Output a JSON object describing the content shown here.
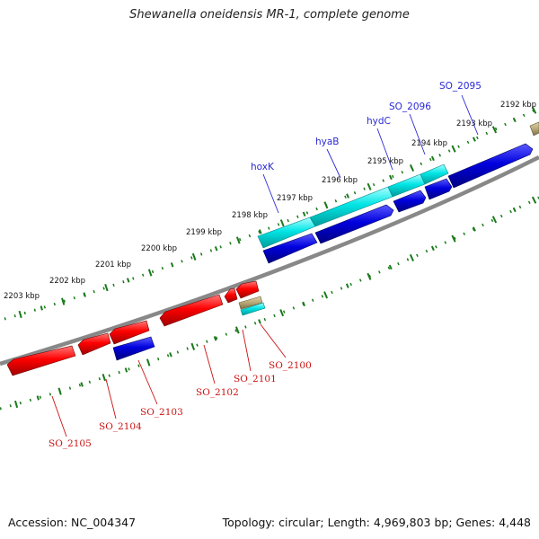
{
  "title": "Shewanella oneidensis MR-1, complete genome",
  "footer": {
    "accession": "Accession: NC_004347",
    "topology": "Topology: circular; Length: 4,969,803 bp; Genes: 4,448"
  },
  "scale_labels": [
    {
      "text": "2192 kbp",
      "kbp": 2192
    },
    {
      "text": "2193 kbp",
      "kbp": 2193
    },
    {
      "text": "2194 kbp",
      "kbp": 2194
    },
    {
      "text": "2195 kbp",
      "kbp": 2195
    },
    {
      "text": "2196 kbp",
      "kbp": 2196
    },
    {
      "text": "2197 kbp",
      "kbp": 2197
    },
    {
      "text": "2198 kbp",
      "kbp": 2198
    },
    {
      "text": "2199 kbp",
      "kbp": 2199
    },
    {
      "text": "2200 kbp",
      "kbp": 2200
    },
    {
      "text": "2201 kbp",
      "kbp": 2201
    },
    {
      "text": "2202 kbp",
      "kbp": 2202
    },
    {
      "text": "2203 kbp",
      "kbp": 2203
    }
  ],
  "gene_labels_top": [
    "SO_2095",
    "SO_2096",
    "hydC",
    "hyaB",
    "hoxK"
  ],
  "gene_labels_bottom": [
    "SO_2100",
    "SO_2101",
    "SO_2102",
    "SO_2103",
    "SO_2104",
    "SO_2105"
  ],
  "colors": {
    "forward_strand": "#ff0000",
    "reverse_strand": "#0000dd",
    "cds_feature": "#00e5e5",
    "other_feature": "#b8a878",
    "backbone": "#888888",
    "ticks": "#1a7a1a",
    "label_blue": "#2a2ad6",
    "label_red": "#cc1111"
  }
}
